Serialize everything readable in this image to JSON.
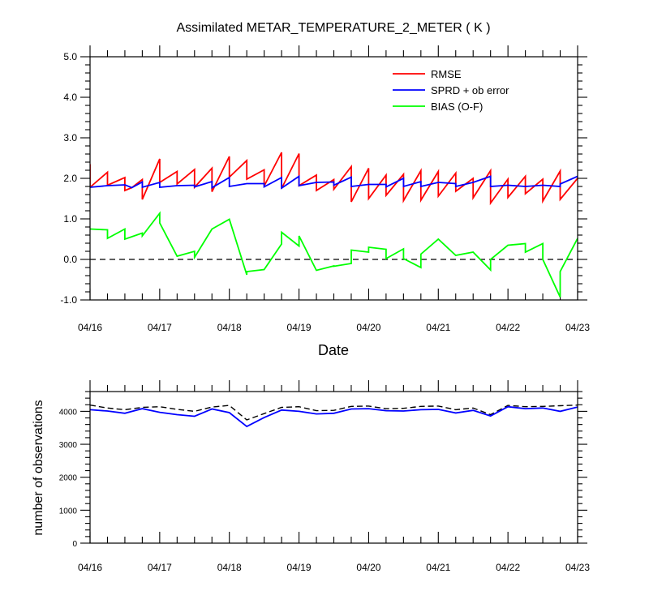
{
  "chart_data": [
    {
      "type": "line",
      "title": "Assimilated METAR_TEMPERATURE_2_METER ( K )",
      "xlabel": "Date",
      "ylabel": "",
      "x_ticks": [
        "04/16",
        "04/17",
        "04/18",
        "04/19",
        "04/20",
        "04/21",
        "04/22",
        "04/23"
      ],
      "xlim": [
        "04/16",
        "04/23"
      ],
      "y_ticks": [
        "-1.0",
        "0.0",
        "1.0",
        "2.0",
        "3.0",
        "4.0",
        "5.0"
      ],
      "ylim": [
        -1,
        5
      ],
      "zero_line": true,
      "legend": "top-right",
      "series": [
        {
          "name": "RMSE",
          "color": "#ff0000",
          "points": [
            [
              0.0,
              2.35
            ],
            [
              0.0,
              1.78
            ],
            [
              0.25,
              2.15
            ],
            [
              0.25,
              1.83
            ],
            [
              0.5,
              2.02
            ],
            [
              0.5,
              1.7
            ],
            [
              0.6,
              1.77
            ],
            [
              0.75,
              1.97
            ],
            [
              0.75,
              1.48
            ],
            [
              1.0,
              2.48
            ],
            [
              1.0,
              1.9
            ],
            [
              1.25,
              2.17
            ],
            [
              1.25,
              1.86
            ],
            [
              1.5,
              2.22
            ],
            [
              1.5,
              1.78
            ],
            [
              1.75,
              2.25
            ],
            [
              1.75,
              1.67
            ],
            [
              2.0,
              2.54
            ],
            [
              2.0,
              2.03
            ],
            [
              2.25,
              2.44
            ],
            [
              2.25,
              1.98
            ],
            [
              2.5,
              2.21
            ],
            [
              2.5,
              1.81
            ],
            [
              2.75,
              2.64
            ],
            [
              2.75,
              1.75
            ],
            [
              3.0,
              2.61
            ],
            [
              3.0,
              1.82
            ],
            [
              3.25,
              2.08
            ],
            [
              3.25,
              1.7
            ],
            [
              3.5,
              1.97
            ],
            [
              3.5,
              1.73
            ],
            [
              3.75,
              2.29
            ],
            [
              3.75,
              1.42
            ],
            [
              4.0,
              2.25
            ],
            [
              4.0,
              1.5
            ],
            [
              4.25,
              2.08
            ],
            [
              4.25,
              1.58
            ],
            [
              4.5,
              2.1
            ],
            [
              4.5,
              1.45
            ],
            [
              4.75,
              2.19
            ],
            [
              4.75,
              1.46
            ],
            [
              5.0,
              2.17
            ],
            [
              5.0,
              1.56
            ],
            [
              5.25,
              2.13
            ],
            [
              5.25,
              1.68
            ],
            [
              5.5,
              2.0
            ],
            [
              5.5,
              1.52
            ],
            [
              5.75,
              2.19
            ],
            [
              5.75,
              1.39
            ],
            [
              6.0,
              1.98
            ],
            [
              6.0,
              1.53
            ],
            [
              6.25,
              2.05
            ],
            [
              6.25,
              1.62
            ],
            [
              6.5,
              1.98
            ],
            [
              6.5,
              1.44
            ],
            [
              6.75,
              2.18
            ],
            [
              6.75,
              1.48
            ],
            [
              7.0,
              2.0
            ]
          ]
        },
        {
          "name": "SPRD + ob error",
          "color": "#0000ff",
          "points": [
            [
              0.0,
              1.78
            ],
            [
              0.25,
              1.82
            ],
            [
              0.5,
              1.84
            ],
            [
              0.6,
              1.77
            ],
            [
              0.75,
              1.91
            ],
            [
              0.75,
              1.78
            ],
            [
              1.0,
              1.9
            ],
            [
              1.0,
              1.78
            ],
            [
              1.25,
              1.82
            ],
            [
              1.5,
              1.83
            ],
            [
              1.5,
              1.79
            ],
            [
              1.75,
              1.92
            ],
            [
              1.75,
              1.77
            ],
            [
              2.0,
              2.02
            ],
            [
              2.0,
              1.8
            ],
            [
              2.25,
              1.87
            ],
            [
              2.5,
              1.87
            ],
            [
              2.5,
              1.79
            ],
            [
              2.75,
              2.02
            ],
            [
              2.75,
              1.76
            ],
            [
              3.0,
              2.05
            ],
            [
              3.0,
              1.82
            ],
            [
              3.25,
              1.9
            ],
            [
              3.5,
              1.91
            ],
            [
              3.5,
              1.83
            ],
            [
              3.75,
              2.03
            ],
            [
              3.75,
              1.8
            ],
            [
              4.0,
              1.85
            ],
            [
              4.25,
              1.85
            ],
            [
              4.25,
              1.79
            ],
            [
              4.5,
              2.0
            ],
            [
              4.5,
              1.8
            ],
            [
              4.75,
              1.92
            ],
            [
              4.75,
              1.8
            ],
            [
              5.0,
              1.9
            ],
            [
              5.25,
              1.87
            ],
            [
              5.25,
              1.8
            ],
            [
              5.5,
              1.9
            ],
            [
              5.75,
              2.05
            ],
            [
              5.75,
              1.8
            ],
            [
              6.0,
              1.83
            ],
            [
              6.25,
              1.8
            ],
            [
              6.5,
              1.83
            ],
            [
              6.75,
              1.8
            ],
            [
              6.75,
              1.86
            ],
            [
              7.0,
              2.05
            ]
          ]
        },
        {
          "name": "BIAS (O-F)",
          "color": "#00ff00",
          "points": [
            [
              0.0,
              0.75
            ],
            [
              0.25,
              0.73
            ],
            [
              0.25,
              0.52
            ],
            [
              0.5,
              0.75
            ],
            [
              0.5,
              0.5
            ],
            [
              0.75,
              0.65
            ],
            [
              0.75,
              0.58
            ],
            [
              1.0,
              1.14
            ],
            [
              1.0,
              0.9
            ],
            [
              1.25,
              0.08
            ],
            [
              1.5,
              0.2
            ],
            [
              1.5,
              0.05
            ],
            [
              1.75,
              0.75
            ],
            [
              2.0,
              0.99
            ],
            [
              2.25,
              -0.38
            ],
            [
              2.25,
              -0.3
            ],
            [
              2.5,
              -0.25
            ],
            [
              2.75,
              0.38
            ],
            [
              2.75,
              0.67
            ],
            [
              3.0,
              0.33
            ],
            [
              3.0,
              0.58
            ],
            [
              3.25,
              -0.27
            ],
            [
              3.5,
              -0.16
            ],
            [
              3.5,
              -0.17
            ],
            [
              3.75,
              -0.1
            ],
            [
              3.75,
              0.23
            ],
            [
              4.0,
              0.18
            ],
            [
              4.0,
              0.3
            ],
            [
              4.25,
              0.25
            ],
            [
              4.25,
              0.02
            ],
            [
              4.5,
              0.26
            ],
            [
              4.5,
              0.02
            ],
            [
              4.75,
              -0.2
            ],
            [
              4.75,
              0.13
            ],
            [
              5.0,
              0.5
            ],
            [
              5.25,
              0.1
            ],
            [
              5.5,
              0.18
            ],
            [
              5.75,
              -0.26
            ],
            [
              5.75,
              0.0
            ],
            [
              6.0,
              0.35
            ],
            [
              6.25,
              0.39
            ],
            [
              6.25,
              0.18
            ],
            [
              6.5,
              0.39
            ],
            [
              6.5,
              0.0
            ],
            [
              6.75,
              -0.93
            ],
            [
              6.75,
              -0.3
            ],
            [
              7.0,
              0.52
            ]
          ]
        }
      ]
    },
    {
      "type": "line",
      "title": "",
      "xlabel": "",
      "ylabel": "number of observations",
      "x_ticks": [
        "04/16",
        "04/17",
        "04/18",
        "04/19",
        "04/20",
        "04/21",
        "04/22",
        "04/23"
      ],
      "xlim": [
        "04/16",
        "04/23"
      ],
      "y_ticks": [
        "0",
        "1000",
        "2000",
        "3000",
        "4000"
      ],
      "ylim": [
        0,
        4600
      ],
      "series": [
        {
          "style": "dashed",
          "color": "#000000",
          "points": [
            [
              0.0,
              4190
            ],
            [
              0.25,
              4100
            ],
            [
              0.5,
              4050
            ],
            [
              0.75,
              4120
            ],
            [
              1.0,
              4140
            ],
            [
              1.25,
              4060
            ],
            [
              1.5,
              4000
            ],
            [
              1.75,
              4130
            ],
            [
              2.0,
              4180
            ],
            [
              2.25,
              3740
            ],
            [
              2.5,
              3930
            ],
            [
              2.75,
              4120
            ],
            [
              3.0,
              4140
            ],
            [
              3.25,
              4020
            ],
            [
              3.5,
              4030
            ],
            [
              3.75,
              4150
            ],
            [
              4.0,
              4160
            ],
            [
              4.25,
              4080
            ],
            [
              4.5,
              4090
            ],
            [
              4.75,
              4150
            ],
            [
              5.0,
              4160
            ],
            [
              5.25,
              4050
            ],
            [
              5.5,
              4100
            ],
            [
              5.75,
              3900
            ],
            [
              6.0,
              4180
            ],
            [
              6.25,
              4140
            ],
            [
              6.5,
              4150
            ],
            [
              6.75,
              4170
            ],
            [
              7.0,
              4190
            ]
          ]
        },
        {
          "style": "solid",
          "color": "#0000ff",
          "points": [
            [
              0.0,
              4050
            ],
            [
              0.25,
              4010
            ],
            [
              0.5,
              3940
            ],
            [
              0.75,
              4080
            ],
            [
              1.0,
              3970
            ],
            [
              1.25,
              3900
            ],
            [
              1.5,
              3850
            ],
            [
              1.75,
              4070
            ],
            [
              2.0,
              3960
            ],
            [
              2.25,
              3540
            ],
            [
              2.5,
              3810
            ],
            [
              2.75,
              4040
            ],
            [
              3.0,
              4000
            ],
            [
              3.25,
              3920
            ],
            [
              3.5,
              3940
            ],
            [
              3.75,
              4070
            ],
            [
              4.0,
              4080
            ],
            [
              4.25,
              4020
            ],
            [
              4.5,
              4010
            ],
            [
              4.75,
              4050
            ],
            [
              5.0,
              4060
            ],
            [
              5.25,
              3950
            ],
            [
              5.5,
              4030
            ],
            [
              5.75,
              3860
            ],
            [
              6.0,
              4140
            ],
            [
              6.25,
              4080
            ],
            [
              6.5,
              4100
            ],
            [
              6.75,
              4000
            ],
            [
              7.0,
              4130
            ]
          ]
        }
      ]
    }
  ]
}
